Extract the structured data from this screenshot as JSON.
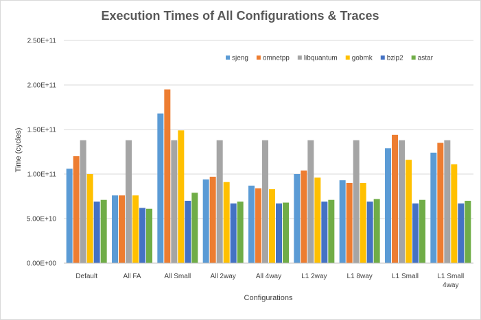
{
  "chart_data": {
    "type": "bar",
    "title": "Execution Times of All Configurations  & Traces",
    "xlabel": "Configurations",
    "ylabel": "Time (cycles)",
    "ylim": [
      0,
      250000000000
    ],
    "yticks": [
      "0.00E+00",
      "5.00E+10",
      "1.00E+11",
      "1.50E+11",
      "2.00E+11",
      "2.50E+11"
    ],
    "ytick_values": [
      0,
      50000000000,
      100000000000,
      150000000000,
      200000000000,
      250000000000
    ],
    "grid": true,
    "legend_position": "top-right",
    "categories": [
      [
        "Default"
      ],
      [
        "All FA"
      ],
      [
        "All Small"
      ],
      [
        "All 2way"
      ],
      [
        "All 4way"
      ],
      [
        "L1 2way"
      ],
      [
        "L1 8way"
      ],
      [
        "L1 Small"
      ],
      [
        "L1 Small",
        "4way"
      ]
    ],
    "series": [
      {
        "name": "sjeng",
        "color": "#5b9bd5",
        "values": [
          106000000000,
          76000000000,
          168000000000,
          94000000000,
          87000000000,
          100000000000,
          93000000000,
          129000000000,
          124000000000
        ]
      },
      {
        "name": "omnetpp",
        "color": "#ed7d31",
        "values": [
          120000000000,
          76000000000,
          195000000000,
          97000000000,
          84000000000,
          104000000000,
          90000000000,
          144000000000,
          135000000000
        ]
      },
      {
        "name": "libquantum",
        "color": "#a5a5a5",
        "values": [
          138000000000,
          138000000000,
          138000000000,
          138000000000,
          138000000000,
          138000000000,
          138000000000,
          138000000000,
          138000000000
        ]
      },
      {
        "name": "gobmk",
        "color": "#ffc000",
        "values": [
          100000000000,
          76000000000,
          149000000000,
          91000000000,
          83000000000,
          96000000000,
          90000000000,
          116000000000,
          111000000000
        ]
      },
      {
        "name": "bzip2",
        "color": "#4472c4",
        "values": [
          69000000000,
          62000000000,
          70000000000,
          67000000000,
          67000000000,
          69000000000,
          69000000000,
          67000000000,
          67000000000
        ]
      },
      {
        "name": "astar",
        "color": "#70ad47",
        "values": [
          71000000000,
          61000000000,
          79000000000,
          69000000000,
          68000000000,
          71000000000,
          72000000000,
          71000000000,
          70000000000
        ]
      }
    ]
  },
  "colors": {
    "gridline": "#d9d9d9",
    "axis": "#bfbfbf",
    "text": "#404040",
    "title": "#595959"
  }
}
